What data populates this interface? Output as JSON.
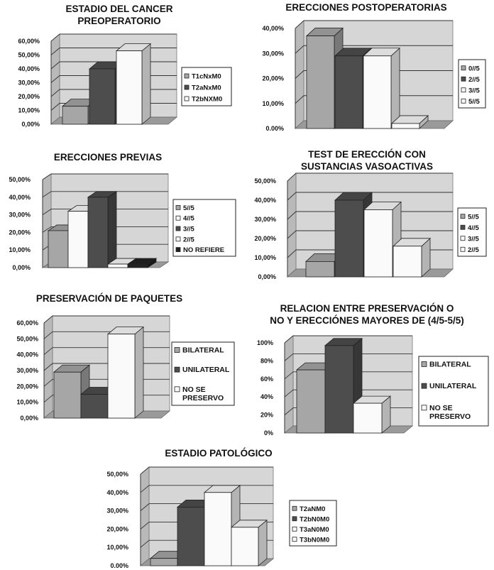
{
  "colors": {
    "light_gray": "#a6a6a6",
    "dark_gray": "#4d4d4d",
    "white": "#fafafa",
    "black": "#222222",
    "wall": "#d6d6d6",
    "floor": "#9a9a9a"
  },
  "chart_data": [
    {
      "type": "bar",
      "title": [
        "ESTADIO DEL CANCER",
        "PREOPERATORIO"
      ],
      "categories": [
        "T1cNxM0",
        "T2aNxM0",
        "T2bNXM0"
      ],
      "values": [
        13,
        40,
        53
      ],
      "value_unit": "%",
      "ylim": [
        0,
        60
      ],
      "yticks": [
        "0,00%",
        "10,00%",
        "20,00%",
        "30,00%",
        "40,00%",
        "50,00%",
        "60,00%"
      ],
      "bar_colors": [
        "light_gray",
        "dark_gray",
        "white"
      ],
      "legend_position": "right"
    },
    {
      "type": "bar",
      "title": [
        "ERECCIONES POSTOPERATORIAS"
      ],
      "categories": [
        "0//5",
        "2//5",
        "3//5",
        "5//5"
      ],
      "values": [
        37,
        29,
        29,
        2
      ],
      "value_unit": "%",
      "ylim": [
        0,
        40
      ],
      "yticks": [
        "0.00%",
        "10,00%",
        "20,00%",
        "30,00%",
        "40,00%"
      ],
      "bar_colors": [
        "light_gray",
        "dark_gray",
        "white",
        "white"
      ],
      "legend_position": "right"
    },
    {
      "type": "bar",
      "title": [
        "ERECCIONES PREVIAS"
      ],
      "categories": [
        "5//5",
        "4//5",
        "3//5",
        "2//5",
        "NO REFIERE"
      ],
      "values": [
        21,
        32,
        40,
        2,
        2
      ],
      "value_unit": "%",
      "ylim": [
        0,
        50
      ],
      "yticks": [
        "0,00%",
        "10,00%",
        "20,00%",
        "30,00%",
        "40,00%",
        "50,00%"
      ],
      "bar_colors": [
        "light_gray",
        "white",
        "dark_gray",
        "white",
        "black"
      ],
      "legend_position": "right"
    },
    {
      "type": "bar",
      "title": [
        "TEST DE ERECCIÓN CON",
        "SUSTANCIAS VASOACTIVAS"
      ],
      "categories": [
        "5//5",
        "4//5",
        "3//5",
        "2//5"
      ],
      "values": [
        8,
        40,
        35,
        16
      ],
      "value_unit": "%",
      "ylim": [
        0,
        50
      ],
      "yticks": [
        "0,00%",
        "10,00%",
        "20,00%",
        "30,00%",
        "40,00%",
        "50,00%"
      ],
      "bar_colors": [
        "light_gray",
        "dark_gray",
        "white",
        "white"
      ],
      "legend_position": "right"
    },
    {
      "type": "bar",
      "title": [
        "PRESERVACIÓN DE PAQUETES"
      ],
      "categories": [
        "BILATERAL",
        "UNILATERAL",
        "NO SE\nPRESERVO"
      ],
      "values": [
        29,
        15,
        53
      ],
      "value_unit": "%",
      "ylim": [
        0,
        60
      ],
      "yticks": [
        "0,00%",
        "10,00%",
        "20,00%",
        "30,00%",
        "40,00%",
        "50,00%",
        "60,00%"
      ],
      "bar_colors": [
        "light_gray",
        "dark_gray",
        "white"
      ],
      "legend_position": "right"
    },
    {
      "type": "bar",
      "title": [
        "RELACION ENTRE PRESERVACIÓN O",
        "NO Y ERECCIÓNES MAYORES DE (4/5-5/5)"
      ],
      "categories": [
        "BILATERAL",
        "UNILATERAL",
        "NO SE\nPRESERVO"
      ],
      "values": [
        70,
        97,
        33
      ],
      "value_unit": "%",
      "ylim": [
        0,
        100
      ],
      "yticks": [
        "0%",
        "20%",
        "40%",
        "60%",
        "80%",
        "100%"
      ],
      "bar_colors": [
        "light_gray",
        "dark_gray",
        "white"
      ],
      "legend_position": "right"
    },
    {
      "type": "bar",
      "title": [
        "ESTADIO PATOLÓGICO"
      ],
      "categories": [
        "T2aNM0",
        "T2bN0M0",
        "T3aN0M0",
        "T3bN0M0"
      ],
      "values": [
        4,
        32,
        40,
        21
      ],
      "value_unit": "%",
      "ylim": [
        0,
        50
      ],
      "yticks": [
        "0.00%",
        "10,00%",
        "20,00%",
        "30,00%",
        "40,00%",
        "50,00%"
      ],
      "bar_colors": [
        "light_gray",
        "dark_gray",
        "white",
        "white"
      ],
      "legend_position": "right"
    }
  ]
}
